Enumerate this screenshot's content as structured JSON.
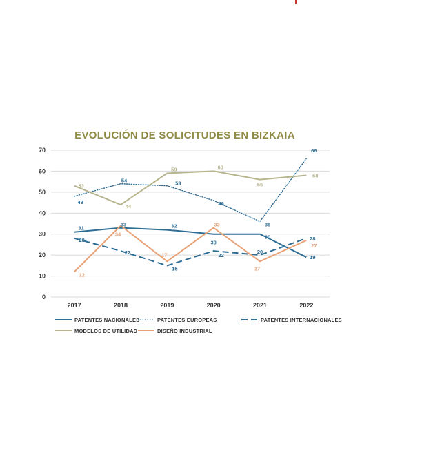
{
  "chart_data": {
    "type": "line",
    "title": "EVOLUCIÓN DE  SOLICITUDES EN BIZKAIA",
    "xlabel": "",
    "ylabel": "",
    "x": [
      "2017",
      "2018",
      "2019",
      "2020",
      "2021",
      "2022"
    ],
    "ylim": [
      0,
      70
    ],
    "yticks": [
      "0",
      "10",
      "20",
      "30",
      "40",
      "50",
      "60",
      "70"
    ],
    "grid": true,
    "legend_position": "bottom",
    "series": [
      {
        "name": "PATENTES NACIONALES",
        "color": "#2e6d94",
        "style": "solid",
        "values": [
          31,
          33,
          32,
          30,
          30,
          19
        ],
        "labels": [
          "31",
          "33",
          "32",
          "30",
          "30",
          "19"
        ]
      },
      {
        "name": "PATENTES EUROPEAS",
        "color": "#2e6d94",
        "style": "dotted",
        "values": [
          48,
          54,
          53,
          46,
          36,
          66
        ],
        "labels": [
          "48",
          "54",
          "53",
          "46",
          "36",
          "66"
        ]
      },
      {
        "name": "PATENTES INTERNACIONALES",
        "color": "#2e6d94",
        "style": "dashed",
        "values": [
          28,
          22,
          15,
          22,
          20,
          28
        ],
        "labels": [
          "28",
          "22",
          "15",
          "22",
          "20",
          "28"
        ]
      },
      {
        "name": "MODELOS DE UTILIDAD",
        "color": "#b6b58e",
        "style": "solid",
        "values": [
          53,
          44,
          59,
          60,
          56,
          58
        ],
        "labels": [
          "53",
          "44",
          "59",
          "60",
          "56",
          "58"
        ]
      },
      {
        "name": "DISEÑO INDUSTRIAL",
        "color": "#e8a276",
        "style": "solid",
        "values": [
          12,
          34,
          17,
          33,
          17,
          27
        ],
        "labels": [
          "12",
          "34",
          "17",
          "33",
          "17",
          "27"
        ]
      }
    ]
  }
}
